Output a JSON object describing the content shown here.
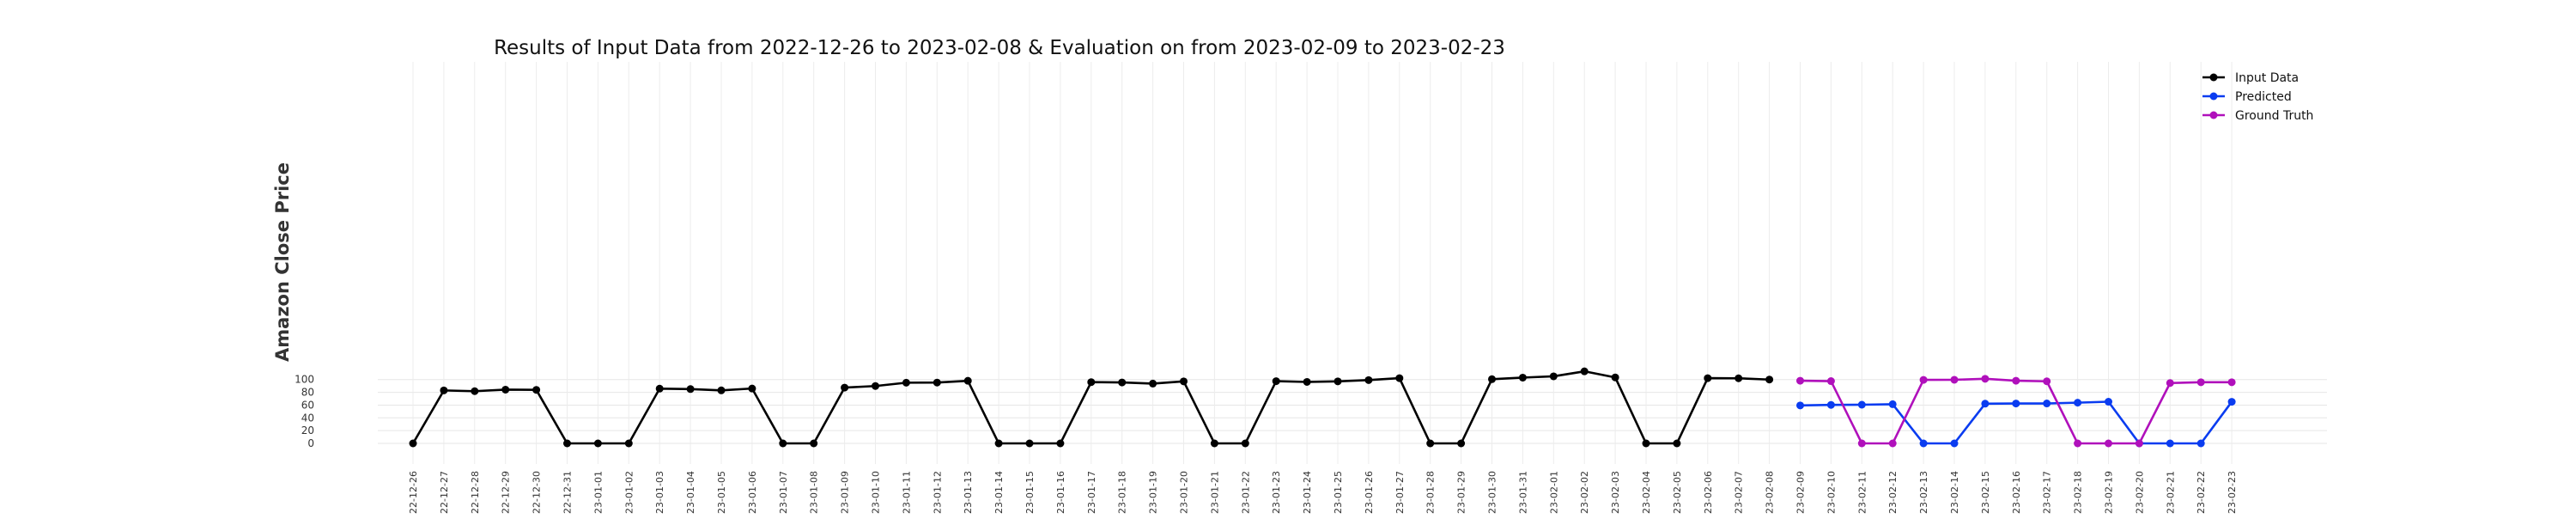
{
  "chart_data": {
    "type": "line",
    "title": "Results of Input Data from 2022-12-26 to 2023-02-08 & Evaluation on from 2023-02-09 to 2023-02-23",
    "xlabel": "",
    "ylabel": "Amazon Close Price",
    "ylim": [
      -10,
      120
    ],
    "yticks": [
      0,
      20,
      40,
      60,
      80,
      100
    ],
    "grid": true,
    "legend_position": "top-right",
    "x": [
      "2022-12-26",
      "2022-12-27",
      "2022-12-28",
      "2022-12-29",
      "2022-12-30",
      "2022-12-31",
      "2023-01-01",
      "2023-01-02",
      "2023-01-03",
      "2023-01-04",
      "2023-01-05",
      "2023-01-06",
      "2023-01-07",
      "2023-01-08",
      "2023-01-09",
      "2023-01-10",
      "2023-01-11",
      "2023-01-12",
      "2023-01-13",
      "2023-01-14",
      "2023-01-15",
      "2023-01-16",
      "2023-01-17",
      "2023-01-18",
      "2023-01-19",
      "2023-01-20",
      "2023-01-21",
      "2023-01-22",
      "2023-01-23",
      "2023-01-24",
      "2023-01-25",
      "2023-01-26",
      "2023-01-27",
      "2023-01-28",
      "2023-01-29",
      "2023-01-30",
      "2023-01-31",
      "2023-02-01",
      "2023-02-02",
      "2023-02-03",
      "2023-02-04",
      "2023-02-05",
      "2023-02-06",
      "2023-02-07",
      "2023-02-08",
      "2023-02-09",
      "2023-02-10",
      "2023-02-11",
      "2023-02-12",
      "2023-02-13",
      "2023-02-14",
      "2023-02-15",
      "2023-02-16",
      "2023-02-17",
      "2023-02-18",
      "2023-02-19",
      "2023-02-20",
      "2023-02-21",
      "2023-02-22",
      "2023-02-23"
    ],
    "series": [
      {
        "name": "Input Data",
        "color": "#000000",
        "x": [
          "2022-12-26",
          "2022-12-27",
          "2022-12-28",
          "2022-12-29",
          "2022-12-30",
          "2022-12-31",
          "2023-01-01",
          "2023-01-02",
          "2023-01-03",
          "2023-01-04",
          "2023-01-05",
          "2023-01-06",
          "2023-01-07",
          "2023-01-08",
          "2023-01-09",
          "2023-01-10",
          "2023-01-11",
          "2023-01-12",
          "2023-01-13",
          "2023-01-14",
          "2023-01-15",
          "2023-01-16",
          "2023-01-17",
          "2023-01-18",
          "2023-01-19",
          "2023-01-20",
          "2023-01-21",
          "2023-01-22",
          "2023-01-23",
          "2023-01-24",
          "2023-01-25",
          "2023-01-26",
          "2023-01-27",
          "2023-01-28",
          "2023-01-29",
          "2023-01-30",
          "2023-01-31",
          "2023-02-01",
          "2023-02-02",
          "2023-02-03",
          "2023-02-04",
          "2023-02-05",
          "2023-02-06",
          "2023-02-07",
          "2023-02-08"
        ],
        "values": [
          0,
          83.0,
          81.8,
          84.2,
          83.9,
          0,
          0,
          0,
          85.8,
          85.1,
          83.1,
          86.0,
          0,
          0,
          87.4,
          89.9,
          95.1,
          95.3,
          98.1,
          0,
          0,
          0,
          96.0,
          95.5,
          93.7,
          97.2,
          0,
          0,
          97.5,
          96.3,
          97.2,
          99.2,
          102.2,
          0,
          0,
          100.6,
          103.1,
          105.1,
          112.9,
          103.4,
          0,
          0,
          102.2,
          102.0,
          100.0
        ]
      },
      {
        "name": "Predicted",
        "color": "#0a3cf0",
        "x": [
          "2023-02-09",
          "2023-02-10",
          "2023-02-11",
          "2023-02-12",
          "2023-02-13",
          "2023-02-14",
          "2023-02-15",
          "2023-02-16",
          "2023-02-17",
          "2023-02-18",
          "2023-02-19",
          "2023-02-20",
          "2023-02-21",
          "2023-02-22",
          "2023-02-23"
        ],
        "values": [
          59.5,
          60.3,
          60.6,
          61.4,
          0,
          0,
          62.2,
          62.5,
          62.6,
          63.8,
          65.3,
          0,
          0,
          0,
          65.2
        ]
      },
      {
        "name": "Ground Truth",
        "color": "#b010bb",
        "x": [
          "2023-02-09",
          "2023-02-10",
          "2023-02-11",
          "2023-02-12",
          "2023-02-13",
          "2023-02-14",
          "2023-02-15",
          "2023-02-16",
          "2023-02-17",
          "2023-02-18",
          "2023-02-19",
          "2023-02-20",
          "2023-02-21",
          "2023-02-22",
          "2023-02-23"
        ],
        "values": [
          98.2,
          97.6,
          0,
          0,
          99.5,
          99.7,
          101.2,
          98.2,
          97.3,
          0,
          0,
          0,
          94.6,
          95.8,
          95.8
        ]
      }
    ]
  }
}
